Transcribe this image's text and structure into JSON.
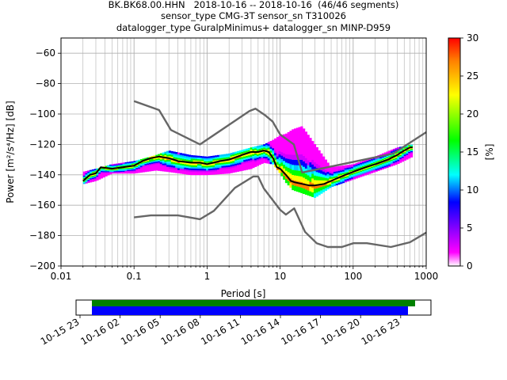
{
  "title": {
    "line1": "BK.BK68.00.HHN   2018-10-16 -- 2018-10-16  (46/46 segments)",
    "line2": "sensor_type CMG-3T sensor_sn T310026",
    "line3": "datalogger_type GuralpMinimus+ datalogger_sn MINP-D959"
  },
  "colors": {
    "noise_model": "#666666",
    "mode_line": "#000000",
    "grid": "#b0b0b0",
    "coverage_green": "#008000",
    "coverage_blue": "#0000ff",
    "colormap_stops": [
      "#ffffff",
      "#ff00ff",
      "#0000ff",
      "#00ffff",
      "#00ff00",
      "#ffff00",
      "#ff8000",
      "#ff0000"
    ]
  },
  "chart_data": [
    {
      "type": "heatmap",
      "xlabel": "Period [s]",
      "ylabel": "Power [m²/s⁴/Hz] [dB]",
      "xscale": "log",
      "xlim": [
        0.01,
        1000
      ],
      "ylim": [
        -200,
        -50
      ],
      "x_ticks": [
        0.01,
        0.1,
        1,
        10,
        100,
        1000
      ],
      "x_tick_labels": [
        "0.01",
        "0.1",
        "1",
        "10",
        "100",
        "1000"
      ],
      "y_ticks": [
        -60,
        -80,
        -100,
        -120,
        -140,
        -160,
        -180,
        -200
      ],
      "y_tick_labels": [
        "−60",
        "−80",
        "−100",
        "−120",
        "−140",
        "−160",
        "−180",
        "−200"
      ],
      "grid": true,
      "colorbar": {
        "label": "[%]",
        "range": [
          0,
          30
        ],
        "ticks": [
          0,
          5,
          10,
          15,
          20,
          25,
          30
        ],
        "tick_labels": [
          "0",
          "5",
          "10",
          "15",
          "20",
          "25",
          "30"
        ]
      },
      "series": [
        {
          "role": "high_noise_model",
          "x": [
            0.1,
            0.22,
            0.32,
            0.8,
            3.8,
            4.6,
            6.3,
            7.9,
            10,
            15.4,
            20,
            354.8,
            1000
          ],
          "y": [
            -91.5,
            -97.4,
            -110.5,
            -120,
            -98,
            -96.5,
            -101,
            -105,
            -113.5,
            -120,
            -138.5,
            -126,
            -112
          ]
        },
        {
          "role": "low_noise_model",
          "x": [
            0.1,
            0.17,
            0.4,
            0.8,
            1.24,
            2.4,
            4.3,
            5,
            6,
            10,
            12,
            15.6,
            21.9,
            31.6,
            45,
            70,
            101,
            154,
            328,
            600,
            1000
          ],
          "y": [
            -168,
            -166.7,
            -166.7,
            -169.2,
            -163.7,
            -148.6,
            -141.1,
            -141.1,
            -149,
            -163,
            -166.2,
            -162.1,
            -177.5,
            -185,
            -187.5,
            -187.5,
            -185,
            -185,
            -187.5,
            -184.4,
            -178
          ]
        },
        {
          "role": "mode",
          "x": [
            0.02,
            0.025,
            0.03,
            0.035,
            0.05,
            0.07,
            0.1,
            0.13,
            0.17,
            0.22,
            0.3,
            0.4,
            0.6,
            0.8,
            1.0,
            1.5,
            2.0,
            3.0,
            4.0,
            5.0,
            6.0,
            7.0,
            8.0,
            9.0,
            10,
            12,
            14,
            16,
            20,
            25,
            30,
            40,
            50,
            70,
            100,
            150,
            200,
            300,
            400,
            500,
            600,
            650
          ],
          "y": [
            -144,
            -140,
            -139,
            -135,
            -136,
            -135,
            -134,
            -131,
            -129,
            -128,
            -129,
            -131,
            -132,
            -132,
            -133,
            -131,
            -130,
            -127,
            -125,
            -125,
            -124,
            -125,
            -129,
            -135,
            -136,
            -140,
            -144,
            -145,
            -146,
            -147,
            -147,
            -146,
            -144,
            -141,
            -138,
            -135,
            -133,
            -130,
            -127,
            -124,
            -122,
            -122
          ]
        }
      ],
      "heatmap_band": {
        "x": [
          0.02,
          0.03,
          0.05,
          0.1,
          0.2,
          0.3,
          0.6,
          1.0,
          2.0,
          4.0,
          6.0,
          8.0,
          10,
          12,
          15,
          20,
          30,
          50,
          100,
          200,
          400,
          650
        ],
        "upper": [
          -138,
          -136,
          -133,
          -131,
          -127,
          -124,
          -127,
          -128,
          -126,
          -122,
          -120,
          -117,
          -114,
          -113,
          -110,
          -108,
          -120,
          -135,
          -133,
          -128,
          -122,
          -120
        ],
        "lower": [
          -146,
          -144,
          -139,
          -139,
          -137,
          -138,
          -140,
          -140,
          -139,
          -136,
          -132,
          -133,
          -139,
          -145,
          -150,
          -152,
          -155,
          -148,
          -143,
          -138,
          -133,
          -128
        ]
      }
    },
    {
      "type": "bar",
      "role": "data_coverage",
      "x_tick_labels": [
        "10-15 23",
        "10-16 02",
        "10-16 05",
        "10-16 08",
        "10-16 11",
        "10-16 14",
        "10-16 17",
        "10-16 20",
        "10-16 23"
      ],
      "series": [
        {
          "color": "#008000",
          "start": "10-16 00:00",
          "end": "10-16 23:59"
        },
        {
          "color": "#0000ff",
          "start": "10-16 00:00",
          "end": "10-16 23:30"
        }
      ]
    }
  ]
}
